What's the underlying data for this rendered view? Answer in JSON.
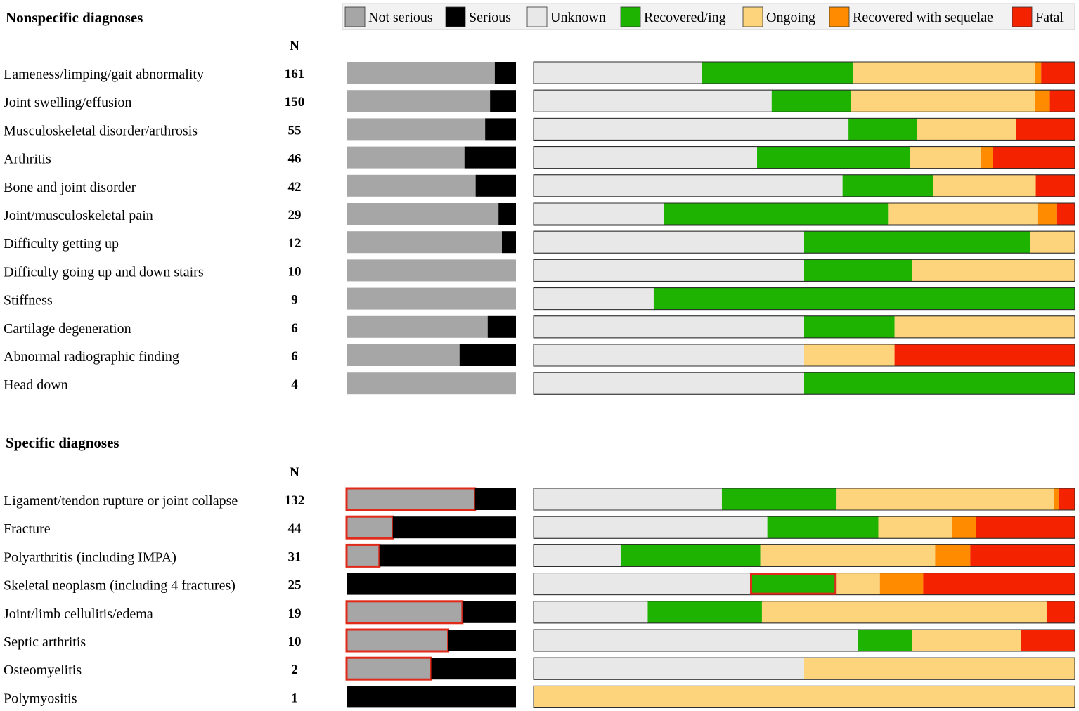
{
  "chart_data": {
    "type": "stacked-bar",
    "legend": {
      "placement": "top-right",
      "items": [
        {
          "key": "not_serious",
          "label": "Not serious",
          "color": "#a6a6a6"
        },
        {
          "key": "serious",
          "label": "Serious",
          "color": "#000000"
        },
        {
          "key": "unknown",
          "label": "Unknown",
          "color": "#e8e8e8"
        },
        {
          "key": "recovered",
          "label": "Recovered/ing",
          "color": "#1db300"
        },
        {
          "key": "ongoing",
          "label": "Ongoing",
          "color": "#fdd47c"
        },
        {
          "key": "sequelae",
          "label": "Recovered with sequelae",
          "color": "#ff8c00"
        },
        {
          "key": "fatal",
          "label": "Fatal",
          "color": "#f52200"
        }
      ]
    },
    "highlight_color": "#e02a1a",
    "sections": [
      {
        "title": "Nonspecific diagnoses",
        "n_header": "N",
        "rows": [
          {
            "label": "Lameness/limping/gait abnormality",
            "n": "161",
            "seriousness": [
              87.5,
              12.5
            ],
            "outcome": [
              31.1,
              28.0,
              33.5,
              1.2,
              6.2
            ]
          },
          {
            "label": "Joint swelling/effusion",
            "n": "150",
            "seriousness": [
              84.7,
              15.3
            ],
            "outcome": [
              44.0,
              14.7,
              34.0,
              2.7,
              4.6
            ]
          },
          {
            "label": "Musculoskeletal disorder/arthrosis",
            "n": "55",
            "seriousness": [
              81.8,
              18.2
            ],
            "outcome": [
              58.2,
              12.7,
              18.2,
              0,
              10.9
            ]
          },
          {
            "label": "Arthritis",
            "n": "46",
            "seriousness": [
              69.6,
              30.4
            ],
            "outcome": [
              41.3,
              28.3,
              13.0,
              2.2,
              15.2
            ]
          },
          {
            "label": "Bone and joint disorder",
            "n": "42",
            "seriousness": [
              76.2,
              23.8
            ],
            "outcome": [
              57.1,
              16.7,
              19.0,
              0,
              7.2
            ]
          },
          {
            "label": "Joint/musculoskeletal pain",
            "n": "29",
            "seriousness": [
              89.7,
              10.3
            ],
            "outcome": [
              24.1,
              41.4,
              27.6,
              3.5,
              3.4
            ]
          },
          {
            "label": "Difficulty getting up",
            "n": "12",
            "seriousness": [
              91.7,
              8.3
            ],
            "outcome": [
              50.0,
              41.7,
              8.3,
              0,
              0
            ]
          },
          {
            "label": "Difficulty going up and down stairs",
            "n": "10",
            "seriousness": [
              100,
              0
            ],
            "outcome": [
              50.0,
              20.0,
              30.0,
              0,
              0
            ]
          },
          {
            "label": "Stiffness",
            "n": "9",
            "seriousness": [
              100,
              0
            ],
            "outcome": [
              22.2,
              77.8,
              0,
              0,
              0
            ]
          },
          {
            "label": "Cartilage degeneration",
            "n": "6",
            "seriousness": [
              83.3,
              16.7
            ],
            "outcome": [
              50.0,
              16.7,
              33.3,
              0,
              0
            ]
          },
          {
            "label": "Abnormal radiographic finding",
            "n": "6",
            "seriousness": [
              66.7,
              33.3
            ],
            "outcome": [
              50.0,
              0,
              16.7,
              0,
              33.3
            ]
          },
          {
            "label": "Head down",
            "n": "4",
            "seriousness": [
              100,
              0
            ],
            "outcome": [
              50.0,
              50.0,
              0,
              0,
              0
            ]
          }
        ]
      },
      {
        "title": "Specific diagnoses",
        "n_header": "N",
        "rows": [
          {
            "label": "Ligament/tendon rupture or joint collapse",
            "n": "132",
            "seriousness": [
              75.8,
              24.2
            ],
            "outcome": [
              34.8,
              21.2,
              40.2,
              0.8,
              3.0
            ],
            "highlight": "not_serious"
          },
          {
            "label": "Fracture",
            "n": "44",
            "seriousness": [
              27.3,
              72.7
            ],
            "outcome": [
              43.2,
              20.5,
              13.6,
              4.5,
              18.2
            ],
            "highlight": "not_serious"
          },
          {
            "label": "Polyarthritis (including IMPA)",
            "n": "31",
            "seriousness": [
              19.4,
              80.6
            ],
            "outcome": [
              16.1,
              25.8,
              32.3,
              6.5,
              19.3
            ],
            "highlight": "not_serious"
          },
          {
            "label": "Skeletal neoplasm (including 4 fractures)",
            "n": "25",
            "seriousness": [
              0,
              100
            ],
            "outcome": [
              40.0,
              16.0,
              8.0,
              8.0,
              28.0
            ],
            "highlight": "recovered"
          },
          {
            "label": "Joint/limb cellulitis/edema",
            "n": "19",
            "seriousness": [
              68.4,
              31.6
            ],
            "outcome": [
              21.1,
              21.1,
              52.6,
              0,
              5.2
            ],
            "highlight": "not_serious"
          },
          {
            "label": "Septic arthritis",
            "n": "10",
            "seriousness": [
              60.0,
              40.0
            ],
            "outcome": [
              60.0,
              10.0,
              20.0,
              0,
              10.0
            ],
            "highlight": "not_serious"
          },
          {
            "label": "Osteomyelitis",
            "n": "2",
            "seriousness": [
              50.0,
              50.0
            ],
            "outcome": [
              50.0,
              0,
              50.0,
              0,
              0
            ],
            "highlight": "not_serious"
          },
          {
            "label": "Polymyositis",
            "n": "1",
            "seriousness": [
              0,
              100
            ],
            "outcome": [
              0,
              0,
              100,
              0,
              0
            ]
          }
        ]
      }
    ]
  }
}
